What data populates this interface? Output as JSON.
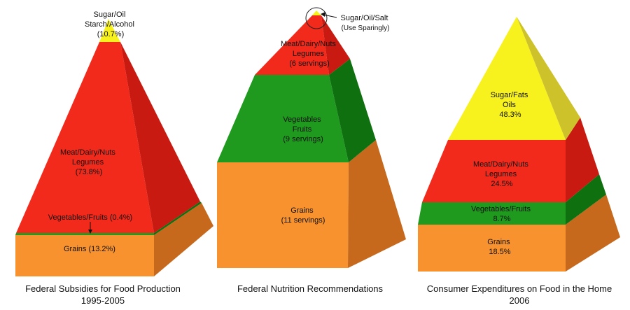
{
  "colors": {
    "grains": "#f7922f",
    "veg": "#1f9a1f",
    "meat": "#f22a1c",
    "sugar": "#f7f21e"
  },
  "pyramid1": {
    "caption_line1": "Federal Subsidies for Food Production",
    "caption_line2": "1995-2005",
    "layers": [
      {
        "label": "Grains (13.2%)",
        "value": 13.2
      },
      {
        "label": "Vegetables/Fruits (0.4%)",
        "value": 0.4
      },
      {
        "label_lines": [
          "Meat/Dairy/Nuts",
          "Legumes",
          "(73.8%)"
        ],
        "value": 73.8
      },
      {
        "label_lines": [
          "Sugar/Oil",
          "Starch/Alcohol",
          "(10.7%)"
        ],
        "value": 10.7
      }
    ]
  },
  "pyramid2": {
    "caption": "Federal Nutrition Recommendations",
    "layers": [
      {
        "label_lines": [
          "Grains",
          "(11 servings)"
        ]
      },
      {
        "label_lines": [
          "Vegetables",
          "Fruits",
          "(9 servings)"
        ]
      },
      {
        "label_lines": [
          "Meat/Dairy/Nuts",
          "Legumes",
          "(6 servings)"
        ]
      },
      {
        "label_lines": [
          "Sugar/Oil/Salt",
          "(Use Sparingly)"
        ]
      }
    ]
  },
  "pyramid3": {
    "caption_line1": "Consumer Expenditures on Food in the Home",
    "caption_line2": "2006",
    "layers": [
      {
        "label_lines": [
          "Grains",
          "18.5%"
        ],
        "value": 18.5
      },
      {
        "label_lines": [
          "Vegetables/Fruits",
          "8.7%"
        ],
        "value": 8.7
      },
      {
        "label_lines": [
          "Meat/Dairy/Nuts",
          "Legumes",
          "24.5%"
        ],
        "value": 24.5
      },
      {
        "label_lines": [
          "Sugar/Fats",
          "Oils",
          "48.3%"
        ],
        "value": 48.3
      }
    ]
  }
}
